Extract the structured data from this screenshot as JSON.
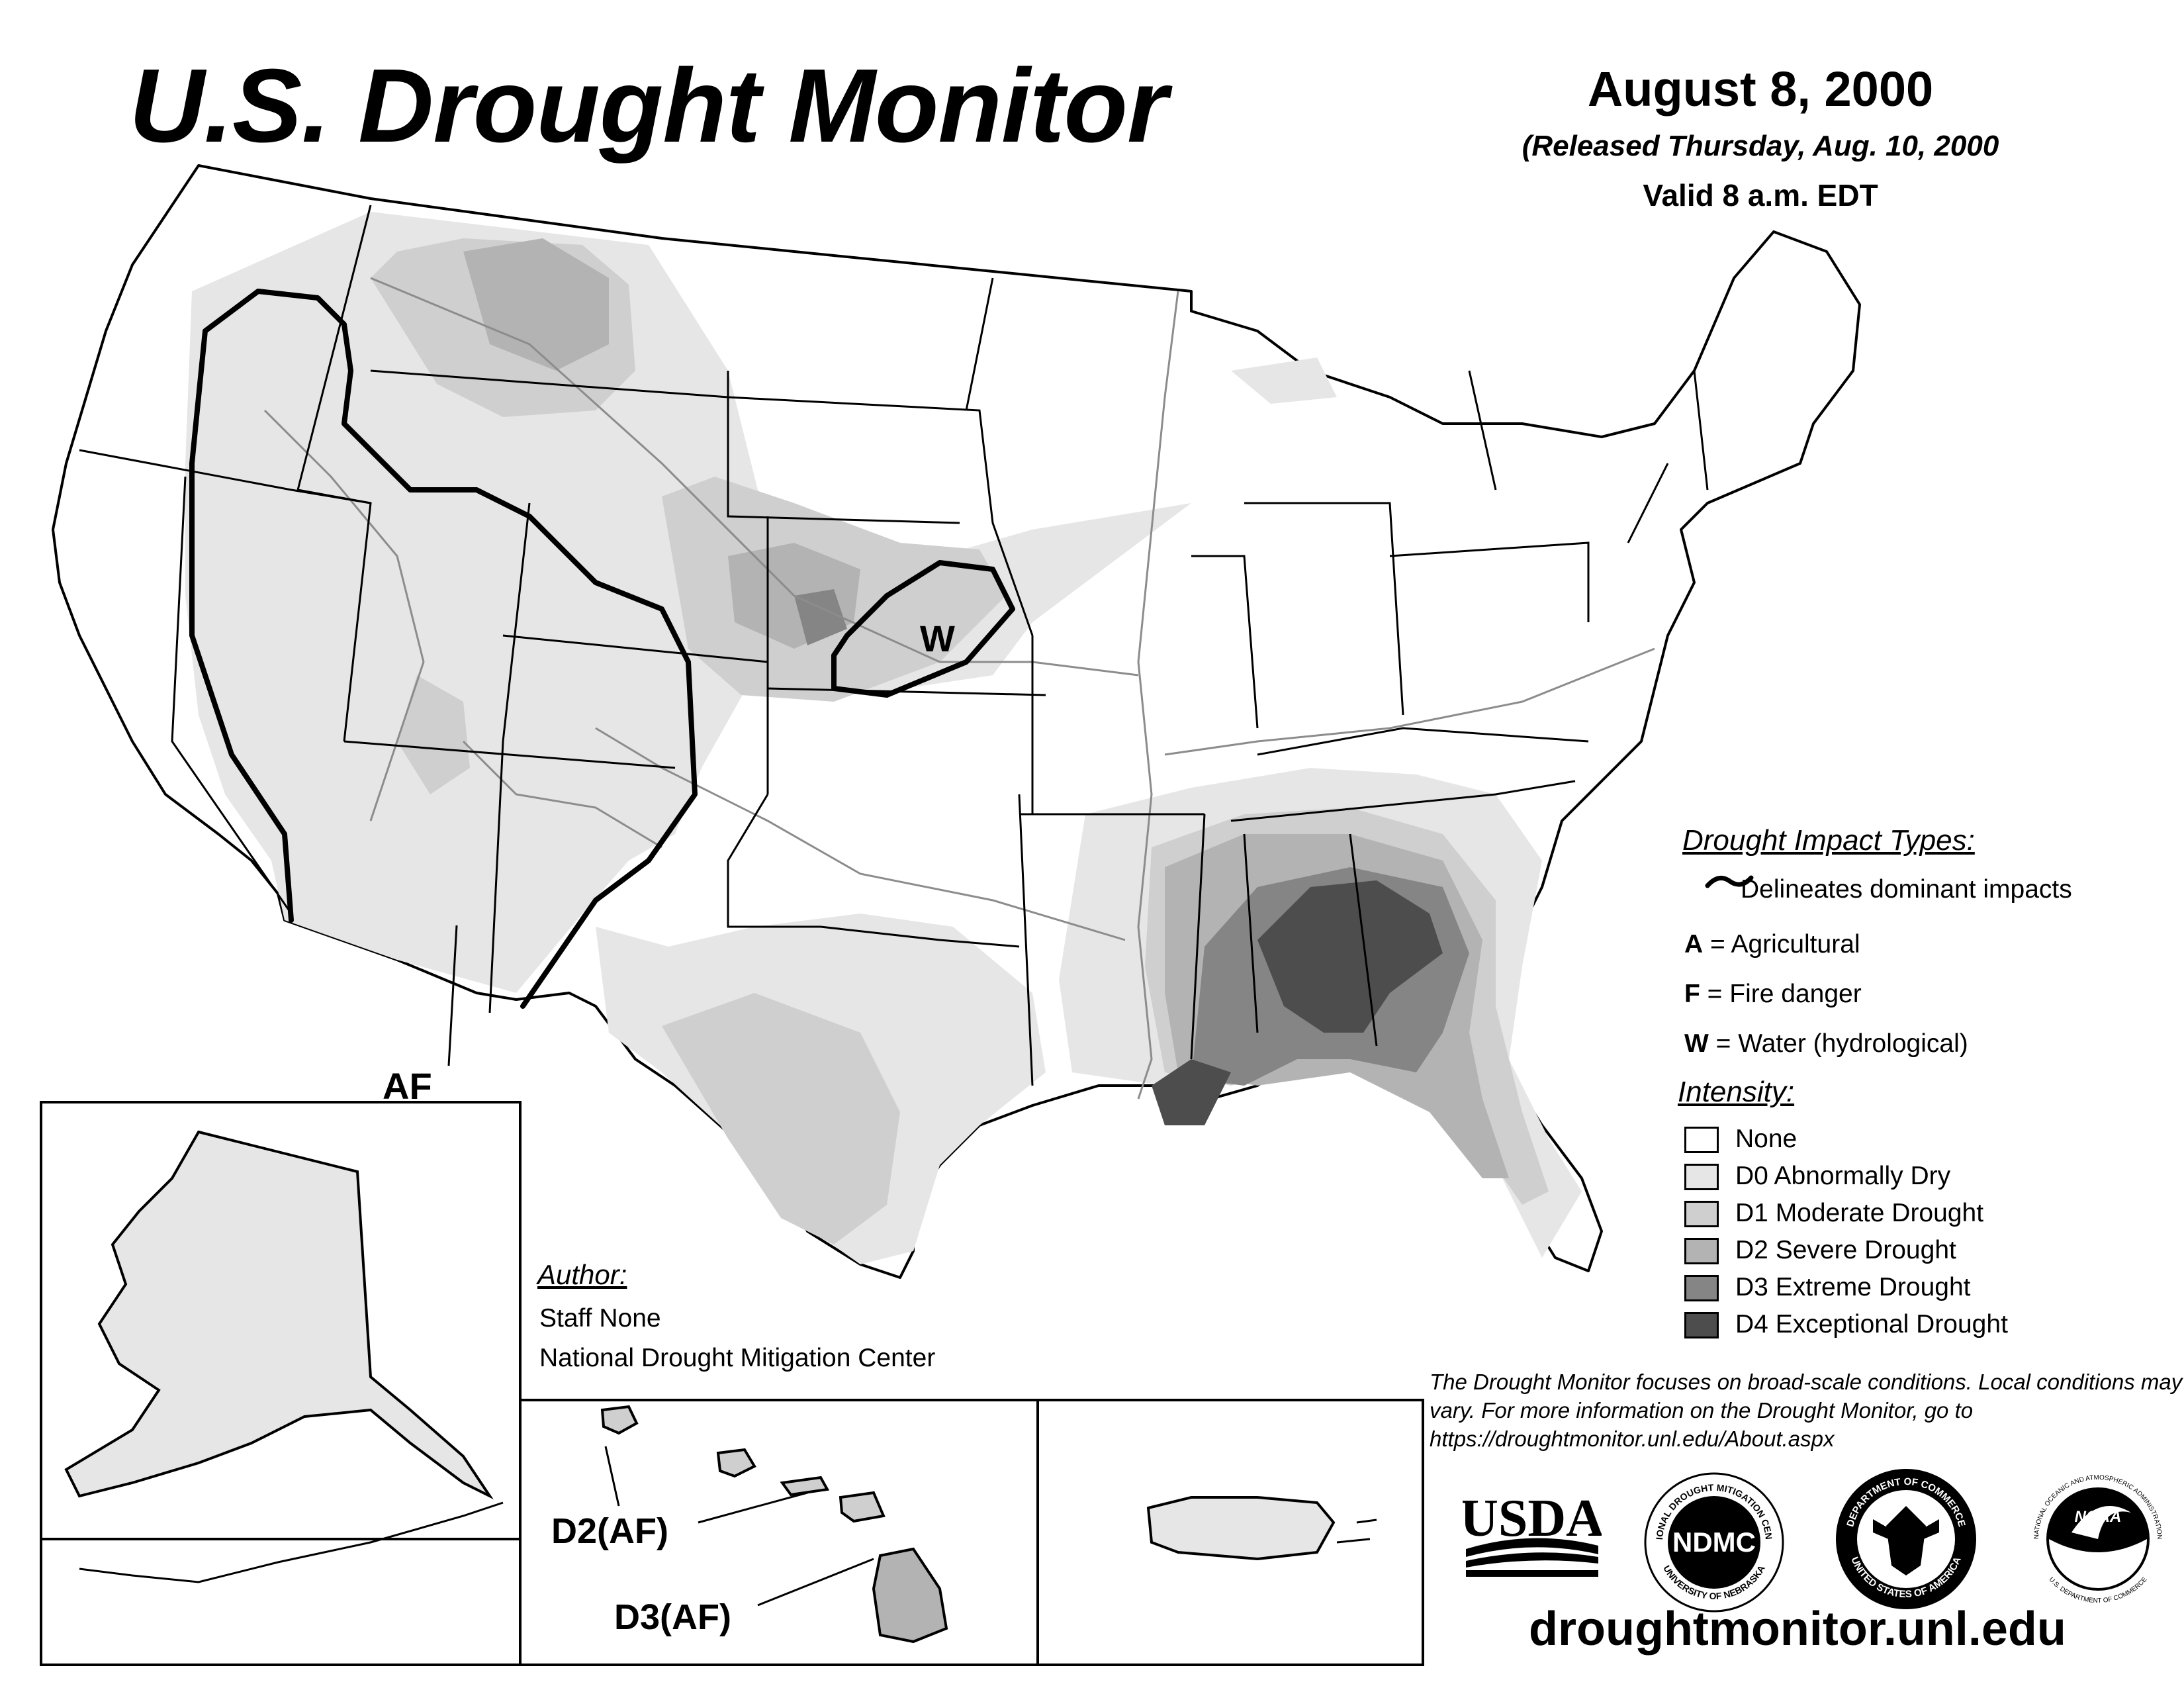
{
  "header": {
    "title": "U.S. Drought Monitor",
    "date": "August 8, 2000",
    "released": "(Released Thursday, Aug. 10, 2000",
    "valid": "Valid 8 a.m. EDT"
  },
  "map_labels": {
    "w": "W",
    "af": "AF",
    "hawaii_d2": "D2(AF)",
    "hawaii_d3": "D3(AF)"
  },
  "impact_legend": {
    "heading": "Drought Impact Types:",
    "delineates": "Delineates dominant impacts",
    "items": [
      {
        "code": "A",
        "label": " = Agricultural"
      },
      {
        "code": "F",
        "label": " = Fire danger"
      },
      {
        "code": "W",
        "label": " = Water (hydrological)"
      }
    ]
  },
  "intensity_legend": {
    "heading": "Intensity:",
    "items": [
      {
        "label": "None",
        "color": "#ffffff"
      },
      {
        "label": "D0 Abnormally Dry",
        "color": "#e6e6e6"
      },
      {
        "label": "D1 Moderate Drought",
        "color": "#cfcfcf"
      },
      {
        "label": "D2 Severe Drought",
        "color": "#b3b3b3"
      },
      {
        "label": "D3 Extreme Drought",
        "color": "#858585"
      },
      {
        "label": "D4 Exceptional Drought",
        "color": "#4d4d4d"
      }
    ]
  },
  "author": {
    "heading": "Author:",
    "name": "Staff None",
    "org": "National Drought Mitigation Center"
  },
  "disclaimer": "The Drought Monitor focuses on broad-scale conditions. Local conditions may vary. For more information on the Drought Monitor, go to https://droughtmonitor.unl.edu/About.aspx",
  "logos": {
    "usda": "USDA",
    "ndmc": "NDMC",
    "ndmc_ring_top": "NATIONAL DROUGHT MITIGATION CENTER",
    "ndmc_ring_bottom": "UNIVERSITY OF NEBRASKA",
    "commerce_ring_top": "DEPARTMENT OF COMMERCE",
    "commerce_ring_bottom": "UNITED STATES OF AMERICA",
    "noaa": "NOAA",
    "noaa_ring_top": "NATIONAL OCEANIC AND ATMOSPHERIC ADMINISTRATION",
    "noaa_ring_bottom": "U.S. DEPARTMENT OF COMMERCE"
  },
  "url": "droughtmonitor.unl.edu",
  "colors": {
    "none": "#ffffff",
    "d0": "#e6e6e6",
    "d1": "#cfcfcf",
    "d2": "#b3b3b3",
    "d3": "#858585",
    "d4": "#4d4d4d",
    "outline": "#000000",
    "rivers": "#8c8c8c"
  }
}
